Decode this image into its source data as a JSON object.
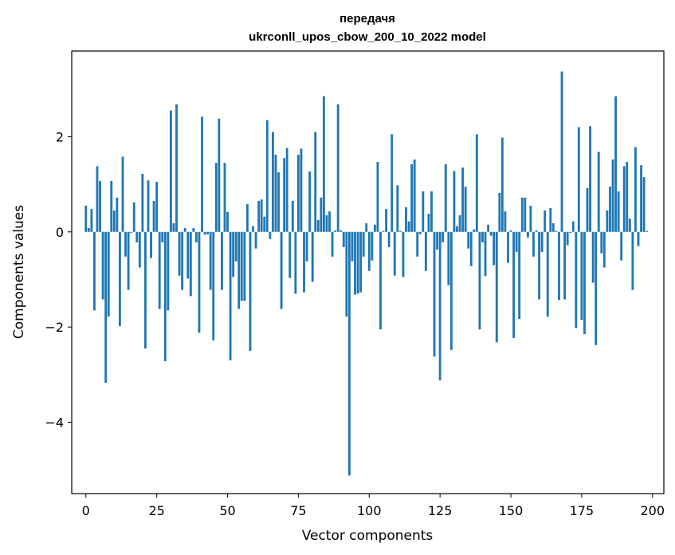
{
  "chart_data": {
    "type": "bar",
    "title": "передачя",
    "subtitle": "ukrconll_upos_cbow_200_10_2022 model",
    "xlabel": "Vector components",
    "ylabel": "Components values",
    "xlim": [
      -5,
      204
    ],
    "ylim": [
      -5.5,
      3.8
    ],
    "xticks": [
      0,
      25,
      50,
      75,
      100,
      125,
      150,
      175,
      200
    ],
    "yticks": [
      -4,
      -2,
      0,
      2
    ],
    "ytick_labels": [
      "−4",
      "−2",
      "0",
      "2"
    ],
    "bar_color": "#1f77b4",
    "grid": false,
    "values": [
      0.55,
      0.08,
      0.48,
      -1.65,
      1.38,
      1.07,
      -1.42,
      -3.17,
      -1.78,
      1.07,
      0.45,
      0.72,
      -1.98,
      1.58,
      -0.52,
      -1.22,
      -0.02,
      0.62,
      -0.22,
      -0.75,
      1.22,
      -2.45,
      1.08,
      -0.55,
      0.65,
      1.05,
      -1.62,
      -0.22,
      -2.72,
      -1.65,
      2.55,
      0.18,
      2.68,
      -0.92,
      -1.22,
      0.08,
      -0.98,
      -1.35,
      0.08,
      -0.22,
      -2.12,
      2.42,
      -0.06,
      -0.05,
      -1.22,
      -2.28,
      1.45,
      2.38,
      -1.22,
      1.45,
      0.42,
      -2.7,
      -0.95,
      -0.62,
      -1.62,
      -1.45,
      -1.45,
      0.58,
      -2.5,
      0.12,
      -0.35,
      0.65,
      0.68,
      0.32,
      2.35,
      -0.15,
      2.1,
      1.62,
      1.25,
      -1.62,
      1.55,
      1.76,
      -0.97,
      0.65,
      -1.3,
      1.62,
      1.75,
      -1.27,
      -0.62,
      1.27,
      -1.05,
      2.1,
      0.25,
      0.72,
      2.85,
      0.35,
      0.43,
      -0.52,
      0.03,
      2.68,
      0.03,
      -0.32,
      -1.78,
      -5.12,
      -0.62,
      -1.32,
      -1.3,
      -1.27,
      -0.52,
      0.18,
      -0.82,
      -0.6,
      0.15,
      1.47,
      -2.05,
      0.02,
      0.48,
      -0.32,
      2.05,
      -0.92,
      0.98,
      0.02,
      -0.95,
      0.52,
      0.22,
      1.42,
      1.52,
      -0.52,
      -0.05,
      0.85,
      -0.82,
      0.38,
      0.85,
      -2.62,
      -0.37,
      -3.12,
      -0.22,
      1.42,
      -1.12,
      -2.48,
      1.28,
      0.12,
      0.35,
      1.35,
      0.95,
      -0.35,
      -0.72,
      0.05,
      2.05,
      -2.05,
      -0.22,
      -0.93,
      0.15,
      -0.08,
      -0.7,
      -2.32,
      0.82,
      1.98,
      0.43,
      -0.65,
      0.03,
      -2.23,
      -0.42,
      -1.83,
      0.72,
      0.72,
      -0.12,
      0.55,
      -0.52,
      0.03,
      -1.42,
      -0.42,
      0.45,
      -1.78,
      0.5,
      0.18,
      0.02,
      -1.43,
      3.37,
      -1.42,
      -0.28,
      -0.02,
      0.22,
      -2.02,
      2.2,
      -1.85,
      -2.15,
      0.92,
      2.22,
      -1.07,
      -2.38,
      1.68,
      -0.45,
      -0.75,
      0.45,
      0.95,
      1.52,
      2.85,
      0.85,
      -0.6,
      1.38,
      1.47,
      0.28,
      -1.22,
      1.78,
      -0.3,
      1.4,
      1.15,
      0.02
    ]
  }
}
